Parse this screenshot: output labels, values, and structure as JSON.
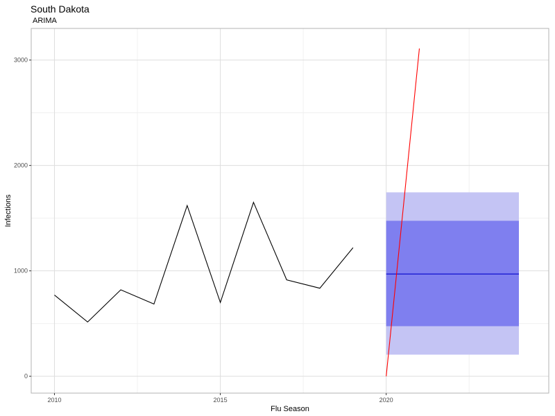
{
  "chart_data": {
    "type": "line",
    "title": "South Dakota",
    "subtitle": "ARIMA",
    "xlabel": "Flu Season",
    "ylabel": "Infections",
    "xlim": [
      2009.3,
      2024.9
    ],
    "ylim": [
      -160,
      3300
    ],
    "x_ticks": [
      2010,
      2015,
      2020
    ],
    "y_ticks": [
      0,
      1000,
      2000,
      3000
    ],
    "x_minor": [
      2012.5,
      2017.5,
      2022.5
    ],
    "y_minor": [
      500,
      1500,
      2500
    ],
    "grid": true,
    "series": [
      {
        "color": "#000000",
        "x": [
          2010,
          2011,
          2012,
          2013,
          2014,
          2015,
          2016,
          2017,
          2018,
          2019
        ],
        "y": [
          770,
          515,
          820,
          685,
          1620,
          700,
          1650,
          915,
          835,
          1220
        ]
      },
      {
        "color": "#0000cc",
        "x": [
          2020,
          2024
        ],
        "y": [
          970,
          970
        ]
      },
      {
        "color": "#ff0000",
        "x": [
          2020,
          2021
        ],
        "y": [
          0,
          3110
        ]
      }
    ],
    "intervals": [
      {
        "level": "95",
        "color": "#c4c4f4",
        "x": [
          2020,
          2024
        ],
        "lower": 205,
        "upper": 1745
      },
      {
        "level": "80",
        "color": "#7f7fef",
        "x": [
          2020,
          2024
        ],
        "lower": 475,
        "upper": 1475
      }
    ]
  }
}
